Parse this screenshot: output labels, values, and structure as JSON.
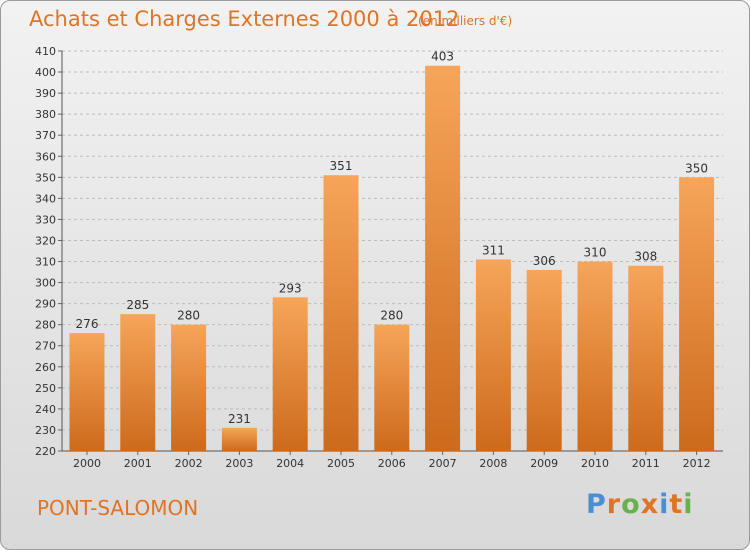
{
  "header": {
    "title": "Achats et Charges Externes 2000 à 2012",
    "unit": "(en milliers d'€)"
  },
  "footer": {
    "commune": "PONT-SALOMON",
    "logo_text": "Proxiti",
    "logo_colors": [
      "#4a8fd6",
      "#e07424",
      "#6ab04c",
      "#e07424",
      "#4a8fd6",
      "#e07424",
      "#6ab04c"
    ]
  },
  "colors": {
    "bar_top": "#f6a55a",
    "bar_bottom": "#cd6a1c",
    "text": "#333333",
    "accent": "#e07424"
  },
  "chart_data": {
    "type": "bar",
    "title": "Achats et Charges Externes 2000 à 2012",
    "subtitle": "(en milliers d'€)",
    "categories": [
      "2000",
      "2001",
      "2002",
      "2003",
      "2004",
      "2005",
      "2006",
      "2007",
      "2008",
      "2009",
      "2010",
      "2011",
      "2012"
    ],
    "values": [
      276,
      285,
      280,
      231,
      293,
      351,
      280,
      403,
      311,
      306,
      310,
      308,
      350
    ],
    "ylim": [
      220,
      410
    ],
    "yticks": [
      220,
      230,
      240,
      250,
      260,
      270,
      280,
      290,
      300,
      310,
      320,
      330,
      340,
      350,
      360,
      370,
      380,
      390,
      400,
      410
    ],
    "grid": true,
    "xlabel": "",
    "ylabel": ""
  }
}
